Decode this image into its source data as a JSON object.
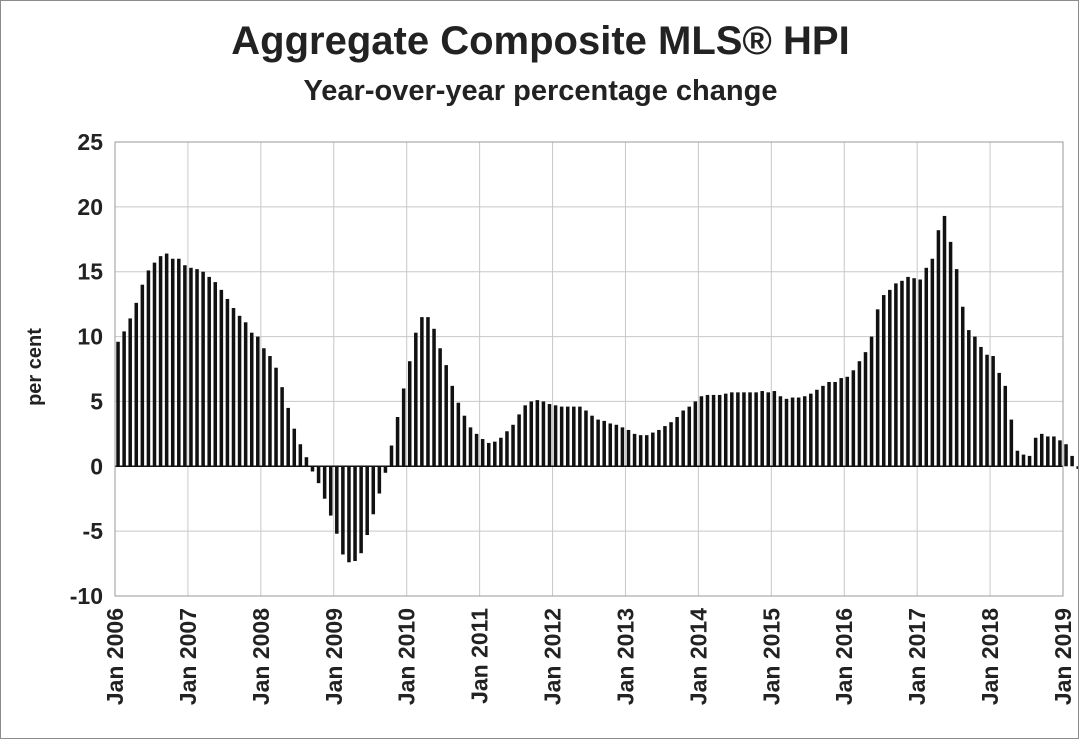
{
  "chart_data": {
    "type": "bar",
    "title": "Aggregate Composite MLS® HPI",
    "subtitle": "Year-over-year percentage change",
    "ylabel": "per cent",
    "xlabel": "",
    "ylim": [
      -10,
      25
    ],
    "yticks": [
      -10,
      -5,
      0,
      5,
      10,
      15,
      20,
      25
    ],
    "grid": true,
    "legend": "none",
    "bar_color": "#111111",
    "grid_color": "#c8c8c8",
    "x_tick_labels": [
      "Jan 2006",
      "Jan 2007",
      "Jan 2008",
      "Jan 2009",
      "Jan 2010",
      "Jan 2011",
      "Jan 2012",
      "Jan 2013",
      "Jan 2014",
      "Jan 2015",
      "Jan 2016",
      "Jan 2017",
      "Jan 2018",
      "Jan 2019"
    ],
    "start_month": "Jan 2006",
    "values": [
      9.6,
      10.4,
      11.4,
      12.6,
      14.0,
      15.1,
      15.7,
      16.2,
      16.4,
      16.0,
      16.0,
      15.5,
      15.3,
      15.2,
      15.0,
      14.6,
      14.2,
      13.6,
      12.9,
      12.2,
      11.6,
      11.1,
      10.3,
      10.0,
      9.1,
      8.5,
      7.6,
      6.1,
      4.5,
      2.9,
      1.7,
      0.7,
      -0.4,
      -1.3,
      -2.5,
      -3.8,
      -5.2,
      -6.8,
      -7.4,
      -7.3,
      -6.7,
      -5.3,
      -3.7,
      -2.1,
      -0.5,
      1.6,
      3.8,
      6.0,
      8.1,
      10.3,
      11.5,
      11.5,
      10.6,
      9.1,
      7.8,
      6.2,
      4.9,
      3.9,
      3.0,
      2.5,
      2.1,
      1.8,
      1.9,
      2.2,
      2.7,
      3.2,
      4.0,
      4.7,
      5.0,
      5.1,
      5.0,
      4.8,
      4.7,
      4.6,
      4.6,
      4.6,
      4.6,
      4.3,
      3.9,
      3.6,
      3.5,
      3.3,
      3.2,
      3.0,
      2.8,
      2.5,
      2.4,
      2.4,
      2.6,
      2.8,
      3.1,
      3.4,
      3.8,
      4.3,
      4.6,
      5.0,
      5.4,
      5.5,
      5.5,
      5.5,
      5.6,
      5.7,
      5.7,
      5.7,
      5.7,
      5.7,
      5.8,
      5.7,
      5.8,
      5.4,
      5.2,
      5.3,
      5.3,
      5.4,
      5.6,
      5.9,
      6.2,
      6.5,
      6.5,
      6.8,
      6.9,
      7.4,
      8.1,
      8.8,
      10.0,
      12.1,
      13.2,
      13.6,
      14.1,
      14.3,
      14.6,
      14.5,
      14.4,
      15.3,
      16.0,
      18.2,
      19.3,
      17.3,
      15.2,
      12.3,
      10.5,
      10.0,
      9.2,
      8.6,
      8.5,
      7.2,
      6.2,
      3.6,
      1.2,
      0.9,
      0.8,
      2.2,
      2.5,
      2.3,
      2.3,
      2.0,
      1.7,
      0.8,
      -0.2
    ]
  }
}
